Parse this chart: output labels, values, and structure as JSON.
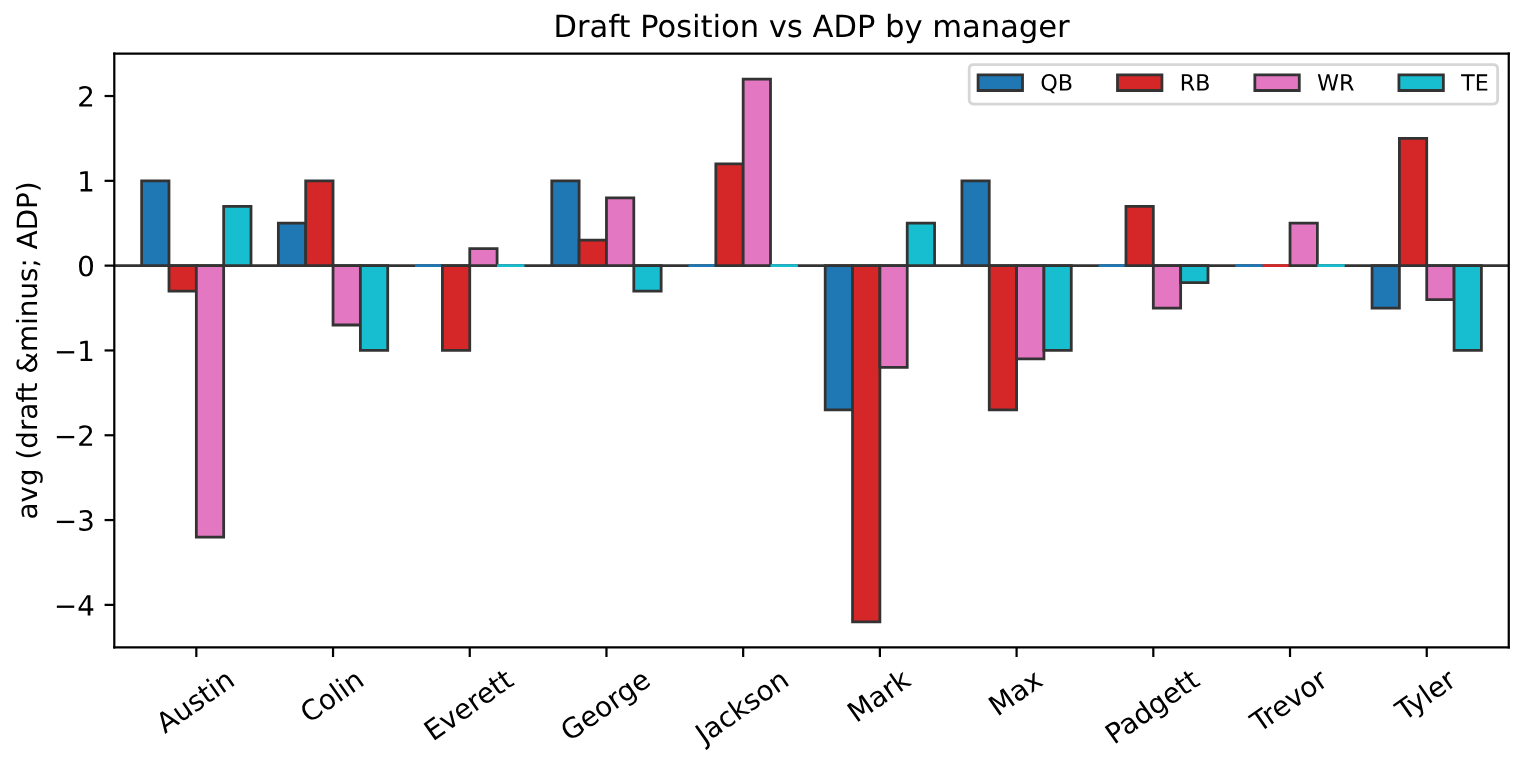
{
  "chart_data": {
    "type": "bar",
    "title": "Draft Position vs ADP by manager",
    "ylabel": "avg (draft &minus; ADP)",
    "categories": [
      "Austin",
      "Colin",
      "Everett",
      "George",
      "Jackson",
      "Mark",
      "Max",
      "Padgett",
      "Trevor",
      "Tyler"
    ],
    "series": [
      {
        "name": "QB",
        "color": "#1f77b4",
        "values": [
          1,
          0.5,
          0,
          1,
          0,
          -1.7,
          1,
          0,
          0,
          -0.5
        ]
      },
      {
        "name": "RB",
        "color": "#d62728",
        "values": [
          -0.3,
          1,
          -1,
          0.3,
          1.2,
          -4.2,
          -1.7,
          0.7,
          0,
          1.5
        ]
      },
      {
        "name": "WR",
        "color": "#e377c2",
        "values": [
          -3.2,
          -0.7,
          0.2,
          0.8,
          2.2,
          -1.2,
          -1.1,
          -0.5,
          0.5,
          -0.4
        ]
      },
      {
        "name": "TE",
        "color": "#17becf",
        "values": [
          0.7,
          -1,
          0,
          -0.3,
          0,
          0.5,
          -1,
          -0.2,
          0,
          -1
        ]
      }
    ],
    "ylim": [
      -4.5,
      2.5
    ],
    "yticks": [
      {
        "value": -4,
        "label": "−4"
      },
      {
        "value": -3,
        "label": "−3"
      },
      {
        "value": -2,
        "label": "−2"
      },
      {
        "value": -1,
        "label": "−1"
      },
      0,
      1,
      2
    ],
    "ref_lines": [
      {
        "axis": "y",
        "value": 0,
        "color": "#333333"
      }
    ],
    "grid": false,
    "legend": "top right"
  }
}
